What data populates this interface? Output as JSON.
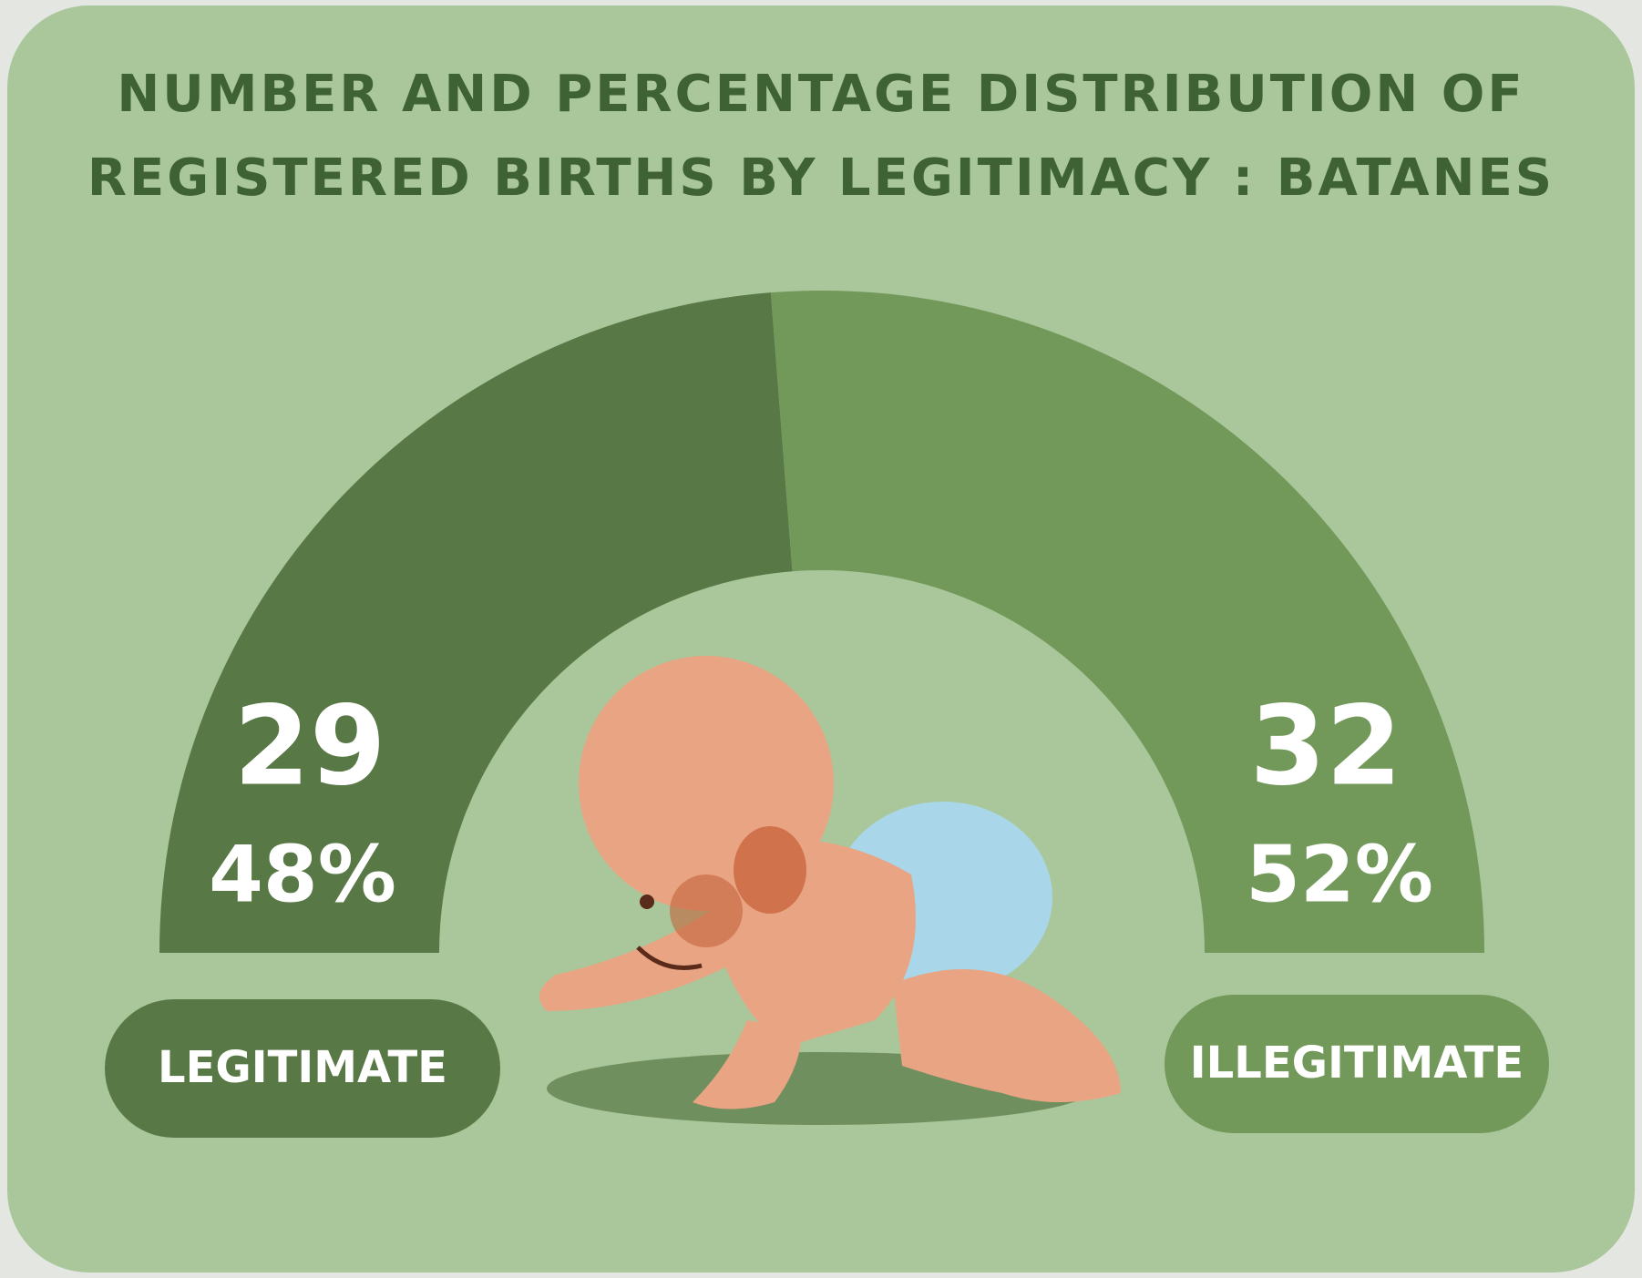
{
  "chart_data": {
    "type": "semi-donut",
    "title": "NUMBER AND PERCENTAGE DISTRIBUTION OF REGISTERED BIRTHS BY LEGITIMACY : BATANES",
    "categories": [
      "LEGITIMATE",
      "ILLEGITIMATE"
    ],
    "values": [
      29,
      32
    ],
    "percentages": [
      48,
      52
    ],
    "percentage_labels": [
      "48%",
      "52%"
    ],
    "colors": [
      "#587845",
      "#72995a"
    ]
  }
}
